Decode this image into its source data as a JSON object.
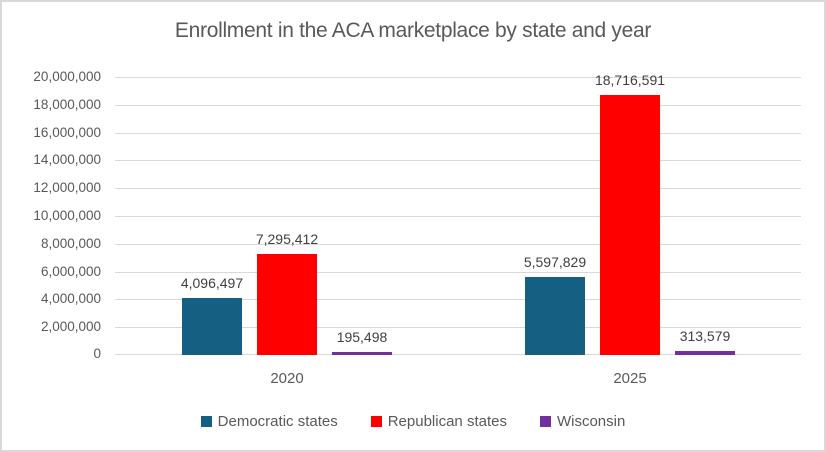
{
  "chart_data": {
    "type": "bar",
    "title": "Enrollment in the ACA marketplace by state and year",
    "categories": [
      "2020",
      "2025"
    ],
    "series": [
      {
        "name": "Democratic states",
        "color": "#156082",
        "values": [
          4096497,
          5597829
        ],
        "labels": [
          "4,096,497",
          "5,597,829"
        ]
      },
      {
        "name": "Republican states",
        "color": "#FF0000",
        "values": [
          7295412,
          18716591
        ],
        "labels": [
          "7,295,412",
          "18,716,591"
        ]
      },
      {
        "name": "Wisconsin",
        "color": "#7030A0",
        "values": [
          195498,
          313579
        ],
        "labels": [
          "195,498",
          "313,579"
        ]
      }
    ],
    "xlabel": "",
    "ylabel": "",
    "ylim": [
      0,
      20000000
    ],
    "ytick_step": 2000000,
    "ytick_labels": [
      "0",
      "2,000,000",
      "4,000,000",
      "6,000,000",
      "8,000,000",
      "10,000,000",
      "12,000,000",
      "14,000,000",
      "16,000,000",
      "18,000,000",
      "20,000,000"
    ],
    "grid": true,
    "legend_position": "bottom"
  },
  "colors": {
    "grid": "#d9d9d9",
    "axis_text": "#595959",
    "data_label_text": "#404040",
    "border": "#d9d9d9",
    "background": "#ffffff"
  }
}
